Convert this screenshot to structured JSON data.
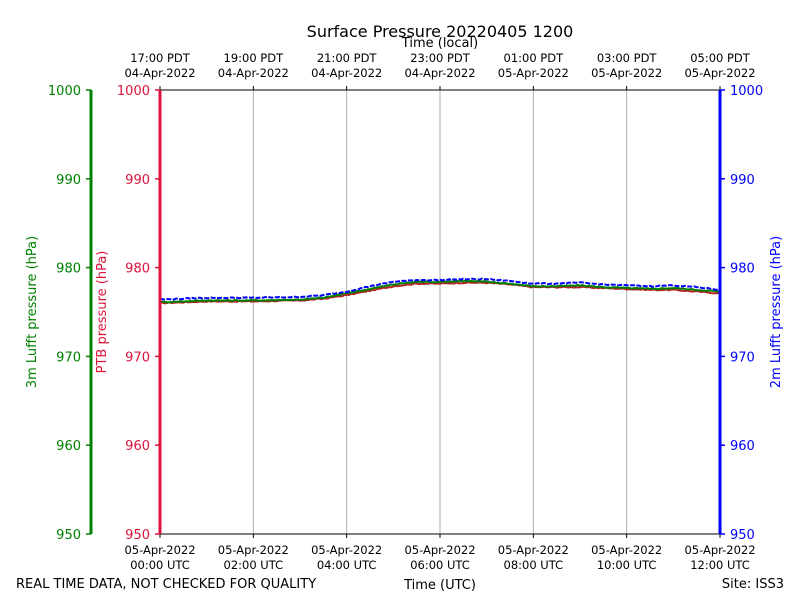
{
  "chart_data": {
    "type": "line",
    "title": "Surface Pressure 20220405 1200",
    "xlabel_bottom": "Time (UTC)",
    "xlabel_top": "Time (local)",
    "ylabel_left_outer": "3m Lufft pressure (hPa)",
    "ylabel_left_inner": "PTB pressure (hPa)",
    "ylabel_right": "2m Lufft pressure (hPa)",
    "ylim": [
      950,
      1000
    ],
    "yticks": [
      950,
      960,
      970,
      980,
      990,
      1000
    ],
    "xlim_hours": [
      0,
      12
    ],
    "xticks_hours": [
      0,
      2,
      4,
      6,
      8,
      10,
      12
    ],
    "xtick_labels_bottom": [
      [
        "05-Apr-2022",
        "00:00 UTC"
      ],
      [
        "05-Apr-2022",
        "02:00 UTC"
      ],
      [
        "05-Apr-2022",
        "04:00 UTC"
      ],
      [
        "05-Apr-2022",
        "06:00 UTC"
      ],
      [
        "05-Apr-2022",
        "08:00 UTC"
      ],
      [
        "05-Apr-2022",
        "10:00 UTC"
      ],
      [
        "05-Apr-2022",
        "12:00 UTC"
      ]
    ],
    "xtick_labels_top": [
      [
        "17:00 PDT",
        "04-Apr-2022"
      ],
      [
        "19:00 PDT",
        "04-Apr-2022"
      ],
      [
        "21:00 PDT",
        "04-Apr-2022"
      ],
      [
        "23:00 PDT",
        "04-Apr-2022"
      ],
      [
        "01:00 PDT",
        "05-Apr-2022"
      ],
      [
        "03:00 PDT",
        "05-Apr-2022"
      ],
      [
        "05:00 PDT",
        "05-Apr-2022"
      ]
    ],
    "grid_x": true,
    "series": [
      {
        "color": "#b22222",
        "x": [
          0,
          1,
          2,
          3,
          3.5,
          4,
          4.5,
          5,
          5.5,
          6,
          6.5,
          7,
          7.5,
          8,
          8.5,
          9,
          9.5,
          10,
          10.5,
          11,
          11.5,
          12
        ],
        "y": [
          976.0,
          976.2,
          976.2,
          976.3,
          976.5,
          976.9,
          977.4,
          977.9,
          978.2,
          978.2,
          978.3,
          978.3,
          978.1,
          977.8,
          977.8,
          977.8,
          977.7,
          977.6,
          977.5,
          977.5,
          977.3,
          977.1
        ]
      },
      {
        "color": "#008000",
        "x": [
          0,
          1,
          2,
          3,
          3.5,
          4,
          4.5,
          5,
          5.5,
          6,
          6.5,
          7,
          7.5,
          8,
          8.5,
          9,
          9.5,
          10,
          10.5,
          11,
          11.5,
          12
        ],
        "y": [
          976.1,
          976.3,
          976.3,
          976.4,
          976.6,
          977.1,
          977.6,
          978.1,
          978.4,
          978.4,
          978.5,
          978.4,
          978.2,
          977.9,
          977.9,
          978.0,
          977.8,
          977.7,
          977.6,
          977.7,
          977.5,
          977.3
        ]
      },
      {
        "color": "#0000ff",
        "x": [
          0,
          1,
          2,
          3,
          3.5,
          4,
          4.5,
          5,
          5.5,
          6,
          6.5,
          7,
          7.5,
          8,
          8.5,
          9,
          9.5,
          10,
          10.5,
          11,
          11.5,
          12
        ],
        "y": [
          976.4,
          976.6,
          976.6,
          976.7,
          976.9,
          977.3,
          977.9,
          978.4,
          978.6,
          978.6,
          978.7,
          978.7,
          978.5,
          978.2,
          978.2,
          978.3,
          978.1,
          978.0,
          977.9,
          978.0,
          977.8,
          977.5
        ]
      }
    ],
    "axis_colors": {
      "left_outer": "#008000",
      "left_inner": "#dc143c",
      "right": "#0000ff",
      "grid": "#b0b0b0"
    }
  },
  "footer": {
    "left": "REAL TIME DATA, NOT CHECKED FOR QUALITY",
    "right": "Site: ISS3"
  }
}
